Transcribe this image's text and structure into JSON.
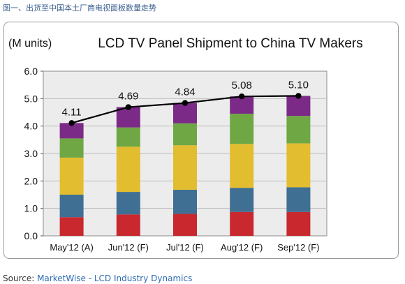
{
  "caption": "图一、出货至中国本土厂商电视面板数量走势",
  "source": {
    "prefix": "Source: ",
    "brand": "MarketWise - LCD Industry Dynamics"
  },
  "chart_data": {
    "type": "bar",
    "title": "LCD TV Panel Shipment to China TV Makers",
    "ylabel": "(M units)",
    "xlabel": "",
    "ylim": [
      0,
      6
    ],
    "yticks": [
      "0.0",
      "1.0",
      "2.0",
      "3.0",
      "4.0",
      "5.0",
      "6.0"
    ],
    "grid": true,
    "stacked": true,
    "categories": [
      "May'12 (A)",
      "Jun'12 (F)",
      "Jul'12 (F)",
      "Aug'12 (F)",
      "Sep'12 (F)"
    ],
    "colors": [
      "#c8282e",
      "#3f6f93",
      "#e2bd2f",
      "#6ea744",
      "#7c2a87"
    ],
    "series": [
      {
        "values": [
          0.68,
          0.78,
          0.8,
          0.87,
          0.87
        ]
      },
      {
        "values": [
          0.82,
          0.82,
          0.88,
          0.88,
          0.9
        ]
      },
      {
        "values": [
          1.35,
          1.65,
          1.62,
          1.6,
          1.6
        ]
      },
      {
        "values": [
          0.7,
          0.7,
          0.8,
          1.1,
          1.0
        ]
      },
      {
        "values": [
          0.56,
          0.74,
          0.74,
          0.63,
          0.73
        ]
      }
    ],
    "total_line": {
      "values": [
        4.11,
        4.69,
        4.84,
        5.08,
        5.1
      ],
      "labels": [
        "4.11",
        "4.69",
        "4.84",
        "5.08",
        "5.10"
      ],
      "color": "#000000"
    },
    "plot_background": "#ececec"
  }
}
